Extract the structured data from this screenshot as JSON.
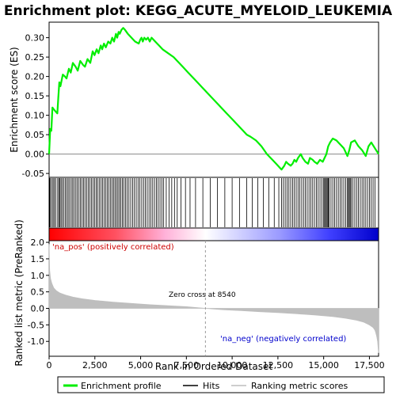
{
  "chart_data": {
    "type": "line",
    "title": "Enrichment plot: KEGG_ACUTE_MYELOID_LEUKEMIA",
    "top_panel": {
      "ylabel": "Enrichment score (ES)",
      "ylim": [
        -0.06,
        0.34
      ],
      "yticks": [
        -0.05,
        0.0,
        0.05,
        0.1,
        0.15,
        0.2,
        0.25,
        0.3
      ],
      "ytick_labels": [
        "-0.05",
        "0.00",
        "0.05",
        "0.10",
        "0.15",
        "0.20",
        "0.25",
        "0.30"
      ],
      "series": [
        {
          "name": "Enrichment profile",
          "color": "#00ee00",
          "x": [
            0,
            60,
            120,
            180,
            260,
            350,
            450,
            500,
            560,
            620,
            750,
            860,
            950,
            1080,
            1180,
            1300,
            1450,
            1560,
            1700,
            1850,
            1960,
            2100,
            2250,
            2380,
            2480,
            2600,
            2700,
            2820,
            2900,
            3000,
            3100,
            3230,
            3350,
            3450,
            3550,
            3650,
            3720,
            3800,
            3860,
            3950,
            4050,
            4150,
            4300,
            4500,
            4700,
            4900,
            4980,
            5050,
            5120,
            5200,
            5300,
            5400,
            5500,
            5600,
            5800,
            6000,
            6200,
            6500,
            6800,
            7000,
            7300,
            7600,
            8000,
            8500,
            8900,
            9300,
            9700,
            10100,
            10500,
            10800,
            11000,
            11300,
            11600,
            11900,
            12200,
            12400,
            12600,
            12700,
            12850,
            12950,
            13050,
            13200,
            13300,
            13400,
            13500,
            13600,
            13750,
            13850,
            14000,
            14150,
            14250,
            14400,
            14500,
            14650,
            14800,
            14950,
            15050,
            15150,
            15250,
            15350,
            15500,
            15700,
            15900,
            16100,
            16300,
            16400,
            16500,
            16700,
            16900,
            17100,
            17300,
            17450,
            17600,
            17800,
            18000
          ],
          "y": [
            0.0,
            0.065,
            0.06,
            0.12,
            0.115,
            0.11,
            0.105,
            0.145,
            0.185,
            0.175,
            0.205,
            0.2,
            0.195,
            0.22,
            0.21,
            0.235,
            0.225,
            0.215,
            0.24,
            0.23,
            0.225,
            0.245,
            0.235,
            0.265,
            0.255,
            0.27,
            0.26,
            0.28,
            0.27,
            0.285,
            0.275,
            0.29,
            0.285,
            0.3,
            0.29,
            0.31,
            0.3,
            0.315,
            0.31,
            0.32,
            0.325,
            0.32,
            0.31,
            0.3,
            0.29,
            0.285,
            0.295,
            0.3,
            0.29,
            0.3,
            0.295,
            0.3,
            0.29,
            0.3,
            0.29,
            0.28,
            0.27,
            0.26,
            0.25,
            0.24,
            0.225,
            0.21,
            0.19,
            0.165,
            0.145,
            0.125,
            0.105,
            0.085,
            0.065,
            0.05,
            0.045,
            0.035,
            0.02,
            0.0,
            -0.015,
            -0.025,
            -0.035,
            -0.04,
            -0.03,
            -0.02,
            -0.025,
            -0.03,
            -0.025,
            -0.015,
            -0.02,
            -0.01,
            0.0,
            -0.01,
            -0.02,
            -0.025,
            -0.01,
            -0.015,
            -0.02,
            -0.025,
            -0.015,
            -0.02,
            -0.01,
            0.0,
            0.02,
            0.03,
            0.04,
            0.035,
            0.025,
            0.015,
            -0.005,
            0.01,
            0.03,
            0.035,
            0.02,
            0.01,
            -0.005,
            0.02,
            0.03,
            0.015,
            0.0
          ]
        }
      ],
      "hits_x": [
        30,
        70,
        150,
        220,
        290,
        360,
        470,
        530,
        580,
        650,
        720,
        800,
        880,
        960,
        1040,
        1120,
        1210,
        1290,
        1370,
        1460,
        1540,
        1630,
        1710,
        1800,
        1880,
        1960,
        2050,
        2140,
        2230,
        2310,
        2400,
        2490,
        2570,
        2650,
        2740,
        2830,
        2920,
        3010,
        3100,
        3180,
        3270,
        3360,
        3440,
        3520,
        3600,
        3680,
        3760,
        3840,
        3920,
        4000,
        4080,
        4170,
        4260,
        4360,
        4460,
        4560,
        4660,
        4760,
        4860,
        4960,
        5060,
        5160,
        5260,
        5360,
        5460,
        5560,
        5660,
        5760,
        5860,
        5960,
        6060,
        6160,
        6260,
        6400,
        6550,
        6700,
        6850,
        7000,
        7200,
        7450,
        7700,
        8000,
        8400,
        8800,
        9200,
        9600,
        10000,
        10400,
        10800,
        11100,
        11400,
        11700,
        12000,
        12300,
        12550,
        12700,
        12800,
        12900,
        13000,
        13100,
        13200,
        13300,
        13400,
        13500,
        13600,
        13700,
        13800,
        13900,
        14000,
        14100,
        14200,
        14300,
        14400,
        14500,
        14600,
        14700,
        14800,
        14900,
        15000,
        15050,
        15100,
        15150,
        15200,
        15250,
        15300,
        15400,
        15500,
        15600,
        15700,
        15800,
        15900,
        16000,
        16100,
        16200,
        16300,
        16350,
        16400,
        16450,
        16500,
        16600,
        16700,
        16800,
        16900,
        17000,
        17100,
        17200,
        17300,
        17400,
        17500,
        17600,
        17700,
        17800
      ]
    },
    "ranked_panel": {
      "ylabel": "Ranked list metric (PreRanked)",
      "xlabel": "Rank in Ordered Dataset",
      "xlim": [
        0,
        18000
      ],
      "xticks": [
        0,
        2500,
        5000,
        7500,
        10000,
        12500,
        15000,
        17500
      ],
      "xtick_labels": [
        "0",
        "2,500",
        "5,000",
        "7,500",
        "10,000",
        "12,500",
        "15,000",
        "17,500"
      ],
      "ylim": [
        -1.45,
        2.05
      ],
      "yticks": [
        -1.0,
        -0.5,
        0.0,
        0.5,
        1.0,
        1.5,
        2.0
      ],
      "ytick_labels": [
        "-1.0",
        "-0.5",
        "0.0",
        "0.5",
        "1.0",
        "1.5",
        "2.0"
      ],
      "metric_x": [
        0,
        30,
        80,
        150,
        250,
        400,
        600,
        900,
        1300,
        1800,
        2500,
        3500,
        4500,
        5500,
        6500,
        7500,
        8540,
        9500,
        10500,
        11500,
        12500,
        13500,
        14500,
        15500,
        16200,
        16800,
        17200,
        17500,
        17700,
        17800,
        17850,
        17900,
        17950,
        18000
      ],
      "metric_y": [
        1.95,
        1.15,
        0.9,
        0.75,
        0.62,
        0.53,
        0.46,
        0.4,
        0.34,
        0.29,
        0.24,
        0.19,
        0.15,
        0.11,
        0.08,
        0.05,
        0.0,
        -0.04,
        -0.07,
        -0.1,
        -0.13,
        -0.16,
        -0.2,
        -0.25,
        -0.3,
        -0.36,
        -0.42,
        -0.5,
        -0.58,
        -0.66,
        -0.74,
        -0.85,
        -1.0,
        -1.35
      ],
      "zero_cross": 8540,
      "zero_cross_label": "Zero cross at 8540",
      "pos_label": "'na_pos' (positively correlated)",
      "neg_label": "'na_neg' (negatively correlated)"
    },
    "legend": {
      "placement": "bottom",
      "items": [
        {
          "label": "Enrichment profile",
          "color": "#00ee00",
          "kind": "line"
        },
        {
          "label": "Hits",
          "color": "#000000",
          "kind": "line"
        },
        {
          "label": "Ranking metric scores",
          "color": "#bebebe",
          "kind": "line"
        }
      ]
    },
    "colors": {
      "positive_label": "#cc0000",
      "negative_label": "#0000cc",
      "metric_fill": "#bebebe",
      "zero_line": "#999999",
      "gradient_red": "#ff0000",
      "gradient_mid": "#ffffff",
      "gradient_blue": "#0000ff"
    }
  }
}
